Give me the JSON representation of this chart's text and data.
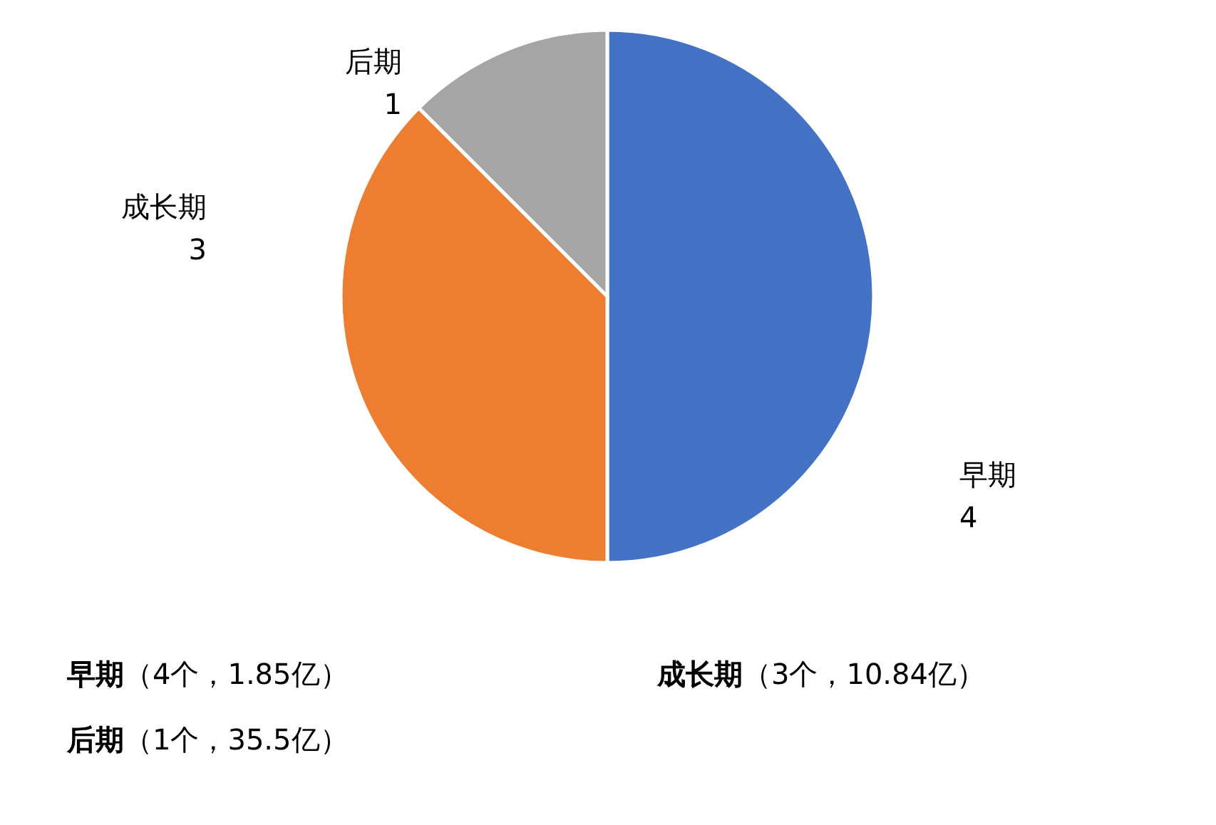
{
  "chart_data": {
    "type": "pie",
    "categories": [
      "早期",
      "成长期",
      "后期"
    ],
    "values": [
      4,
      3,
      1
    ],
    "colors": [
      "#4472c4",
      "#ed7d31",
      "#a5a5a5"
    ],
    "data_labels": true,
    "annotations": [
      "早期（4个，1.85亿）",
      "成长期（3个，10.84亿）",
      "后期（1个，35.5亿）"
    ]
  }
}
